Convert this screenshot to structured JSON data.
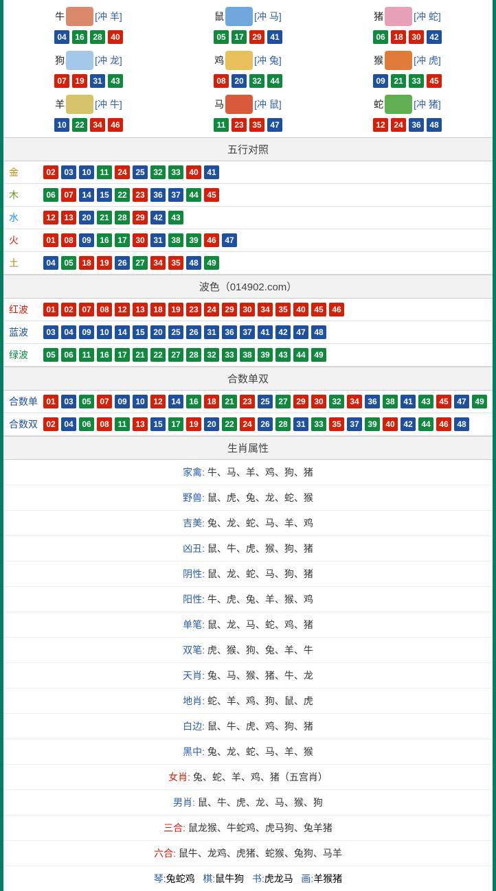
{
  "colors": {
    "red": "#d81e06",
    "blue": "#1e50a2",
    "green": "#0e8a3c",
    "gold": "#c98a00",
    "wood": "#6b8e23",
    "water": "#1e90ff",
    "fire": "#d81e06",
    "earth": "#b8860b",
    "label_red": "#d81e06",
    "label_blue": "#1e50a2",
    "label_green": "#0e8a3c"
  },
  "zodiac": [
    {
      "name": "牛",
      "icon_color": "#d88a6a",
      "clash": "[冲 羊]",
      "nums": [
        {
          "n": "04",
          "c": "blue"
        },
        {
          "n": "16",
          "c": "green"
        },
        {
          "n": "28",
          "c": "green"
        },
        {
          "n": "40",
          "c": "red"
        }
      ]
    },
    {
      "name": "鼠",
      "icon_color": "#6fa8dc",
      "clash": "[冲 马]",
      "nums": [
        {
          "n": "05",
          "c": "green"
        },
        {
          "n": "17",
          "c": "green"
        },
        {
          "n": "29",
          "c": "red"
        },
        {
          "n": "41",
          "c": "blue"
        }
      ]
    },
    {
      "name": "猪",
      "icon_color": "#e6a0b8",
      "clash": "[冲 蛇]",
      "nums": [
        {
          "n": "06",
          "c": "green"
        },
        {
          "n": "18",
          "c": "red"
        },
        {
          "n": "30",
          "c": "red"
        },
        {
          "n": "42",
          "c": "blue"
        }
      ]
    },
    {
      "name": "狗",
      "icon_color": "#a3c7e6",
      "clash": "[冲 龙]",
      "nums": [
        {
          "n": "07",
          "c": "red"
        },
        {
          "n": "19",
          "c": "red"
        },
        {
          "n": "31",
          "c": "blue"
        },
        {
          "n": "43",
          "c": "green"
        }
      ]
    },
    {
      "name": "鸡",
      "icon_color": "#e6c15a",
      "clash": "[冲 兔]",
      "nums": [
        {
          "n": "08",
          "c": "red"
        },
        {
          "n": "20",
          "c": "blue"
        },
        {
          "n": "32",
          "c": "green"
        },
        {
          "n": "44",
          "c": "green"
        }
      ]
    },
    {
      "name": "猴",
      "icon_color": "#e07b39",
      "clash": "[冲 虎]",
      "nums": [
        {
          "n": "09",
          "c": "blue"
        },
        {
          "n": "21",
          "c": "green"
        },
        {
          "n": "33",
          "c": "green"
        },
        {
          "n": "45",
          "c": "red"
        }
      ]
    },
    {
      "name": "羊",
      "icon_color": "#d6c46a",
      "clash": "[冲 牛]",
      "nums": [
        {
          "n": "10",
          "c": "blue"
        },
        {
          "n": "22",
          "c": "green"
        },
        {
          "n": "34",
          "c": "red"
        },
        {
          "n": "46",
          "c": "red"
        }
      ]
    },
    {
      "name": "马",
      "icon_color": "#d85a3a",
      "clash": "[冲 鼠]",
      "nums": [
        {
          "n": "11",
          "c": "green"
        },
        {
          "n": "23",
          "c": "red"
        },
        {
          "n": "35",
          "c": "red"
        },
        {
          "n": "47",
          "c": "blue"
        }
      ]
    },
    {
      "name": "蛇",
      "icon_color": "#5fae4f",
      "clash": "[冲 猪]",
      "nums": [
        {
          "n": "12",
          "c": "red"
        },
        {
          "n": "24",
          "c": "red"
        },
        {
          "n": "36",
          "c": "blue"
        },
        {
          "n": "48",
          "c": "blue"
        }
      ]
    }
  ],
  "wuxing_header": "五行对照",
  "wuxing": [
    {
      "label": "金",
      "label_color": "#c98a00",
      "nums": [
        {
          "n": "02",
          "c": "red"
        },
        {
          "n": "03",
          "c": "blue"
        },
        {
          "n": "10",
          "c": "blue"
        },
        {
          "n": "11",
          "c": "green"
        },
        {
          "n": "24",
          "c": "red"
        },
        {
          "n": "25",
          "c": "blue"
        },
        {
          "n": "32",
          "c": "green"
        },
        {
          "n": "33",
          "c": "green"
        },
        {
          "n": "40",
          "c": "red"
        },
        {
          "n": "41",
          "c": "blue"
        }
      ]
    },
    {
      "label": "木",
      "label_color": "#6b8e23",
      "nums": [
        {
          "n": "06",
          "c": "green"
        },
        {
          "n": "07",
          "c": "red"
        },
        {
          "n": "14",
          "c": "blue"
        },
        {
          "n": "15",
          "c": "blue"
        },
        {
          "n": "22",
          "c": "green"
        },
        {
          "n": "23",
          "c": "red"
        },
        {
          "n": "36",
          "c": "blue"
        },
        {
          "n": "37",
          "c": "blue"
        },
        {
          "n": "44",
          "c": "green"
        },
        {
          "n": "45",
          "c": "red"
        }
      ]
    },
    {
      "label": "水",
      "label_color": "#1e90ff",
      "nums": [
        {
          "n": "12",
          "c": "red"
        },
        {
          "n": "13",
          "c": "red"
        },
        {
          "n": "20",
          "c": "blue"
        },
        {
          "n": "21",
          "c": "green"
        },
        {
          "n": "28",
          "c": "green"
        },
        {
          "n": "29",
          "c": "red"
        },
        {
          "n": "42",
          "c": "blue"
        },
        {
          "n": "43",
          "c": "green"
        }
      ]
    },
    {
      "label": "火",
      "label_color": "#d81e06",
      "nums": [
        {
          "n": "01",
          "c": "red"
        },
        {
          "n": "08",
          "c": "red"
        },
        {
          "n": "09",
          "c": "blue"
        },
        {
          "n": "16",
          "c": "green"
        },
        {
          "n": "17",
          "c": "green"
        },
        {
          "n": "30",
          "c": "red"
        },
        {
          "n": "31",
          "c": "blue"
        },
        {
          "n": "38",
          "c": "green"
        },
        {
          "n": "39",
          "c": "green"
        },
        {
          "n": "46",
          "c": "red"
        },
        {
          "n": "47",
          "c": "blue"
        }
      ]
    },
    {
      "label": "土",
      "label_color": "#b8860b",
      "nums": [
        {
          "n": "04",
          "c": "blue"
        },
        {
          "n": "05",
          "c": "green"
        },
        {
          "n": "18",
          "c": "red"
        },
        {
          "n": "19",
          "c": "red"
        },
        {
          "n": "26",
          "c": "blue"
        },
        {
          "n": "27",
          "c": "green"
        },
        {
          "n": "34",
          "c": "red"
        },
        {
          "n": "35",
          "c": "red"
        },
        {
          "n": "48",
          "c": "blue"
        },
        {
          "n": "49",
          "c": "green"
        }
      ]
    }
  ],
  "bose_header": "波色（014902.com）",
  "bose": [
    {
      "label": "红波",
      "label_color": "#d81e06",
      "nums": [
        {
          "n": "01",
          "c": "red"
        },
        {
          "n": "02",
          "c": "red"
        },
        {
          "n": "07",
          "c": "red"
        },
        {
          "n": "08",
          "c": "red"
        },
        {
          "n": "12",
          "c": "red"
        },
        {
          "n": "13",
          "c": "red"
        },
        {
          "n": "18",
          "c": "red"
        },
        {
          "n": "19",
          "c": "red"
        },
        {
          "n": "23",
          "c": "red"
        },
        {
          "n": "24",
          "c": "red"
        },
        {
          "n": "29",
          "c": "red"
        },
        {
          "n": "30",
          "c": "red"
        },
        {
          "n": "34",
          "c": "red"
        },
        {
          "n": "35",
          "c": "red"
        },
        {
          "n": "40",
          "c": "red"
        },
        {
          "n": "45",
          "c": "red"
        },
        {
          "n": "46",
          "c": "red"
        }
      ]
    },
    {
      "label": "蓝波",
      "label_color": "#1e50a2",
      "nums": [
        {
          "n": "03",
          "c": "blue"
        },
        {
          "n": "04",
          "c": "blue"
        },
        {
          "n": "09",
          "c": "blue"
        },
        {
          "n": "10",
          "c": "blue"
        },
        {
          "n": "14",
          "c": "blue"
        },
        {
          "n": "15",
          "c": "blue"
        },
        {
          "n": "20",
          "c": "blue"
        },
        {
          "n": "25",
          "c": "blue"
        },
        {
          "n": "26",
          "c": "blue"
        },
        {
          "n": "31",
          "c": "blue"
        },
        {
          "n": "36",
          "c": "blue"
        },
        {
          "n": "37",
          "c": "blue"
        },
        {
          "n": "41",
          "c": "blue"
        },
        {
          "n": "42",
          "c": "blue"
        },
        {
          "n": "47",
          "c": "blue"
        },
        {
          "n": "48",
          "c": "blue"
        }
      ]
    },
    {
      "label": "绿波",
      "label_color": "#0e8a3c",
      "nums": [
        {
          "n": "05",
          "c": "green"
        },
        {
          "n": "06",
          "c": "green"
        },
        {
          "n": "11",
          "c": "green"
        },
        {
          "n": "16",
          "c": "green"
        },
        {
          "n": "17",
          "c": "green"
        },
        {
          "n": "21",
          "c": "green"
        },
        {
          "n": "22",
          "c": "green"
        },
        {
          "n": "27",
          "c": "green"
        },
        {
          "n": "28",
          "c": "green"
        },
        {
          "n": "32",
          "c": "green"
        },
        {
          "n": "33",
          "c": "green"
        },
        {
          "n": "38",
          "c": "green"
        },
        {
          "n": "39",
          "c": "green"
        },
        {
          "n": "43",
          "c": "green"
        },
        {
          "n": "44",
          "c": "green"
        },
        {
          "n": "49",
          "c": "green"
        }
      ]
    }
  ],
  "heshu_header": "合数单双",
  "heshu": [
    {
      "label": "合数单",
      "label_color": "#1e50a2",
      "nums": [
        {
          "n": "01",
          "c": "red"
        },
        {
          "n": "03",
          "c": "blue"
        },
        {
          "n": "05",
          "c": "green"
        },
        {
          "n": "07",
          "c": "red"
        },
        {
          "n": "09",
          "c": "blue"
        },
        {
          "n": "10",
          "c": "blue"
        },
        {
          "n": "12",
          "c": "red"
        },
        {
          "n": "14",
          "c": "blue"
        },
        {
          "n": "16",
          "c": "green"
        },
        {
          "n": "18",
          "c": "red"
        },
        {
          "n": "21",
          "c": "green"
        },
        {
          "n": "23",
          "c": "red"
        },
        {
          "n": "25",
          "c": "blue"
        },
        {
          "n": "27",
          "c": "green"
        },
        {
          "n": "29",
          "c": "red"
        },
        {
          "n": "30",
          "c": "red"
        },
        {
          "n": "32",
          "c": "green"
        },
        {
          "n": "34",
          "c": "red"
        },
        {
          "n": "36",
          "c": "blue"
        },
        {
          "n": "38",
          "c": "green"
        },
        {
          "n": "41",
          "c": "blue"
        },
        {
          "n": "43",
          "c": "green"
        },
        {
          "n": "45",
          "c": "red"
        },
        {
          "n": "47",
          "c": "blue"
        },
        {
          "n": "49",
          "c": "green"
        }
      ]
    },
    {
      "label": "合数双",
      "label_color": "#1e50a2",
      "nums": [
        {
          "n": "02",
          "c": "red"
        },
        {
          "n": "04",
          "c": "blue"
        },
        {
          "n": "06",
          "c": "green"
        },
        {
          "n": "08",
          "c": "red"
        },
        {
          "n": "11",
          "c": "green"
        },
        {
          "n": "13",
          "c": "red"
        },
        {
          "n": "15",
          "c": "blue"
        },
        {
          "n": "17",
          "c": "green"
        },
        {
          "n": "19",
          "c": "red"
        },
        {
          "n": "20",
          "c": "blue"
        },
        {
          "n": "22",
          "c": "green"
        },
        {
          "n": "24",
          "c": "red"
        },
        {
          "n": "26",
          "c": "blue"
        },
        {
          "n": "28",
          "c": "green"
        },
        {
          "n": "31",
          "c": "blue"
        },
        {
          "n": "33",
          "c": "green"
        },
        {
          "n": "35",
          "c": "red"
        },
        {
          "n": "37",
          "c": "blue"
        },
        {
          "n": "39",
          "c": "green"
        },
        {
          "n": "40",
          "c": "red"
        },
        {
          "n": "42",
          "c": "blue"
        },
        {
          "n": "44",
          "c": "green"
        },
        {
          "n": "46",
          "c": "red"
        },
        {
          "n": "48",
          "c": "blue"
        }
      ]
    }
  ],
  "attr_header": "生肖属性",
  "attrs": [
    {
      "label": "家禽",
      "color": "#2a5db0",
      "value": "牛、马、羊、鸡、狗、猪"
    },
    {
      "label": "野兽",
      "color": "#2a5db0",
      "value": "鼠、虎、兔、龙、蛇、猴"
    },
    {
      "label": "吉美",
      "color": "#2a5db0",
      "value": "兔、龙、蛇、马、羊、鸡"
    },
    {
      "label": "凶丑",
      "color": "#2a5db0",
      "value": "鼠、牛、虎、猴、狗、猪"
    },
    {
      "label": "阴性",
      "color": "#2a5db0",
      "value": "鼠、龙、蛇、马、狗、猪"
    },
    {
      "label": "阳性",
      "color": "#2a5db0",
      "value": "牛、虎、兔、羊、猴、鸡"
    },
    {
      "label": "单笔",
      "color": "#2a5db0",
      "value": "鼠、龙、马、蛇、鸡、猪"
    },
    {
      "label": "双笔",
      "color": "#2a5db0",
      "value": "虎、猴、狗、兔、羊、牛"
    },
    {
      "label": "天肖",
      "color": "#2a5db0",
      "value": "兔、马、猴、猪、牛、龙"
    },
    {
      "label": "地肖",
      "color": "#2a5db0",
      "value": "蛇、羊、鸡、狗、鼠、虎"
    },
    {
      "label": "白边",
      "color": "#2a5db0",
      "value": "鼠、牛、虎、鸡、狗、猪"
    },
    {
      "label": "黑中",
      "color": "#2a5db0",
      "value": "兔、龙、蛇、马、羊、猴"
    },
    {
      "label": "女肖",
      "color": "#d81e06",
      "value": "兔、蛇、羊、鸡、猪（五宫肖）"
    },
    {
      "label": "男肖",
      "color": "#2a5db0",
      "value": "鼠、牛、虎、龙、马、猴、狗"
    },
    {
      "label": "三合",
      "color": "#d81e06",
      "value": "鼠龙猴、牛蛇鸡、虎马狗、兔羊猪"
    },
    {
      "label": "六合",
      "color": "#d81e06",
      "value": "鼠牛、龙鸡、虎猪、蛇猴、兔狗、马羊"
    }
  ],
  "bottom": [
    {
      "k": "琴",
      "v": "兔蛇鸡"
    },
    {
      "k": "棋",
      "v": "鼠牛狗"
    },
    {
      "k": "书",
      "v": "虎龙马"
    },
    {
      "k": "画",
      "v": "羊猴猪"
    }
  ]
}
